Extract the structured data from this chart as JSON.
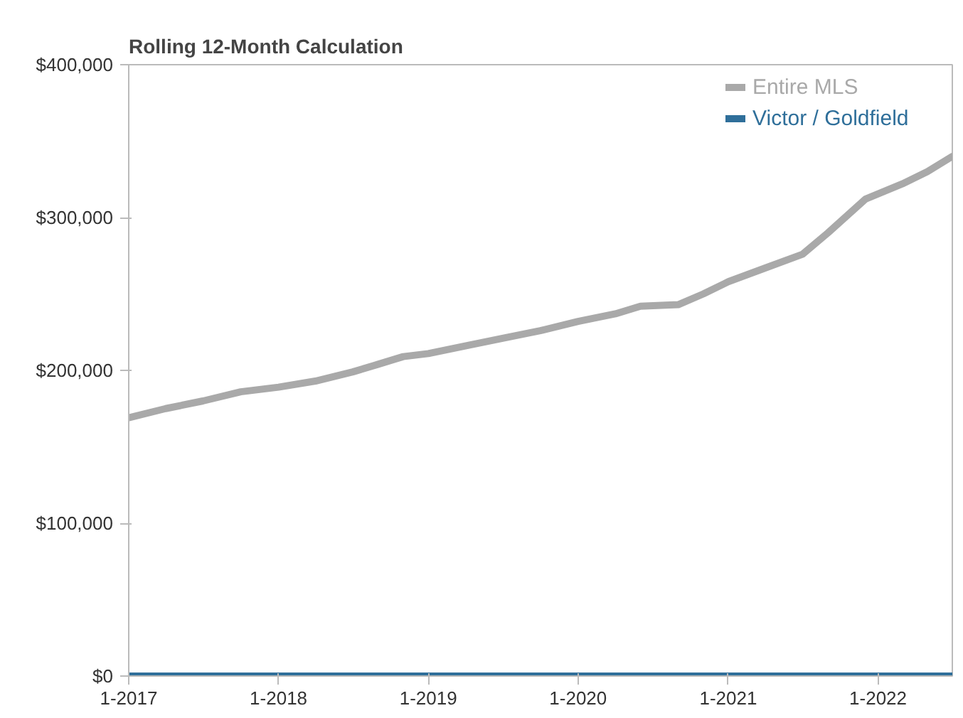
{
  "chart_data": {
    "type": "line",
    "title": "Rolling 12-Month Calculation",
    "x": [
      "2017-01",
      "2017-04",
      "2017-07",
      "2017-10",
      "2018-01",
      "2018-04",
      "2018-07",
      "2018-09",
      "2018-11",
      "2019-01",
      "2019-04",
      "2019-07",
      "2019-10",
      "2020-01",
      "2020-04",
      "2020-06",
      "2020-09",
      "2020-11",
      "2021-01",
      "2021-04",
      "2021-07",
      "2021-09",
      "2021-12",
      "2022-03",
      "2022-05",
      "2022-07"
    ],
    "series": [
      {
        "name": "Entire MLS",
        "color": "#a9a9a9",
        "values": [
          169000,
          175000,
          180000,
          186000,
          189000,
          193000,
          199000,
          204000,
          209000,
          211000,
          216000,
          221000,
          226000,
          232000,
          237000,
          242000,
          243000,
          250000,
          258000,
          267000,
          276000,
          290000,
          312000,
          322000,
          330000,
          340000
        ]
      },
      {
        "name": "Victor / Goldfield",
        "color": "#2f6f9a",
        "values": [
          0,
          0,
          0,
          0,
          0,
          0,
          0,
          0,
          0,
          0,
          0,
          0,
          0,
          0,
          0,
          0,
          0,
          0,
          0,
          0,
          0,
          0,
          0,
          0,
          0,
          0
        ]
      }
    ],
    "xlim": [
      "2017-01",
      "2022-07"
    ],
    "xticks": [
      {
        "value": "2017-01",
        "label": "1-2017"
      },
      {
        "value": "2018-01",
        "label": "1-2018"
      },
      {
        "value": "2019-01",
        "label": "1-2019"
      },
      {
        "value": "2020-01",
        "label": "1-2020"
      },
      {
        "value": "2021-01",
        "label": "1-2021"
      },
      {
        "value": "2022-01",
        "label": "1-2022"
      }
    ],
    "ylim": [
      0,
      400000
    ],
    "yticks": [
      {
        "value": 0,
        "label": "$0"
      },
      {
        "value": 100000,
        "label": "$100,000"
      },
      {
        "value": 200000,
        "label": "$200,000"
      },
      {
        "value": 300000,
        "label": "$300,000"
      },
      {
        "value": 400000,
        "label": "$400,000"
      }
    ],
    "legend": "top right",
    "grid": false,
    "line_style": "solid"
  }
}
